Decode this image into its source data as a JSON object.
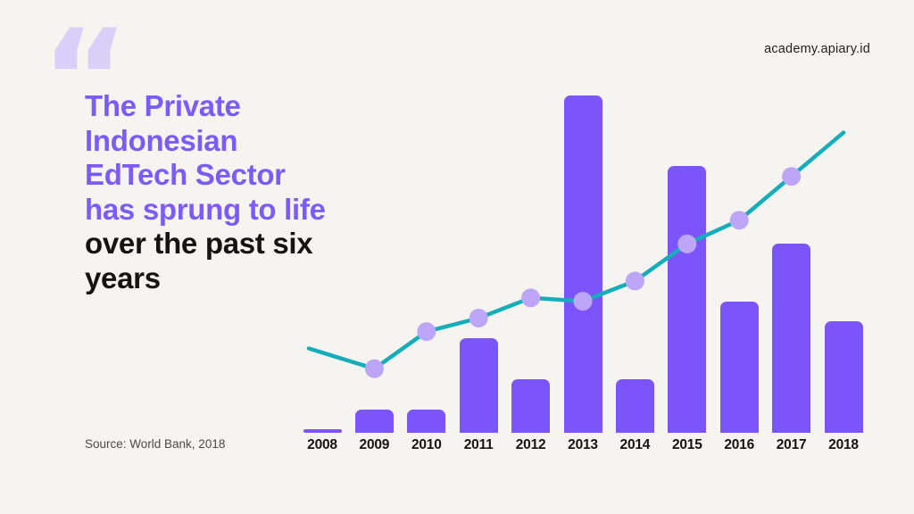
{
  "page": {
    "background_hex": "#F6F4F0"
  },
  "header": {
    "site_label": "academy.apiary.id"
  },
  "quote": {
    "glyph": "“"
  },
  "title": {
    "purple_hex": "#7D5BFA",
    "dark_hex": "#161412",
    "lines": [
      {
        "text": "The Private",
        "emphasis": "purple"
      },
      {
        "text": "Indonesian",
        "emphasis": "purple"
      },
      {
        "text": "EdTech Sector",
        "emphasis": "purple"
      },
      {
        "text": "has sprung to life",
        "emphasis": "purple"
      },
      {
        "text": "over the past six",
        "emphasis": "dark"
      },
      {
        "text": "years",
        "emphasis": "dark"
      }
    ]
  },
  "source": {
    "label": "Source: World Bank, 2018"
  },
  "chart_data": {
    "type": "bar",
    "subtype": "bar-and-line combo",
    "title": "",
    "xlabel": "",
    "ylabel": "",
    "categories": [
      "2008",
      "2009",
      "2010",
      "2011",
      "2012",
      "2013",
      "2014",
      "2015",
      "2016",
      "2017",
      "2018"
    ],
    "series": [
      {
        "name": "edtech-activity-bars",
        "type": "bar",
        "color": "#7B55FA",
        "values": [
          1,
          7,
          7,
          28,
          16,
          100,
          16,
          79,
          39,
          56,
          33
        ]
      },
      {
        "name": "growth-trend-line",
        "type": "line",
        "color": "#13AEB9",
        "marker_color": "#BDA6F7",
        "marker_indices": [
          1,
          2,
          3,
          4,
          5,
          6,
          7,
          8,
          9
        ],
        "values": [
          25,
          19,
          30,
          34,
          40,
          39,
          45,
          56,
          63,
          76,
          89
        ]
      }
    ],
    "value_scale_note": "relative units 0-100; no numeric axis labels shown in chart",
    "ylim": [
      0,
      100
    ],
    "grid": false,
    "legend": false
  },
  "colors": {
    "background": "#F6F4F0",
    "bar_purple": "#7B55FA",
    "line_teal": "#13AEB9",
    "marker_lavender": "#BDA6F7",
    "quote_lavender": "#D9CFF8"
  }
}
